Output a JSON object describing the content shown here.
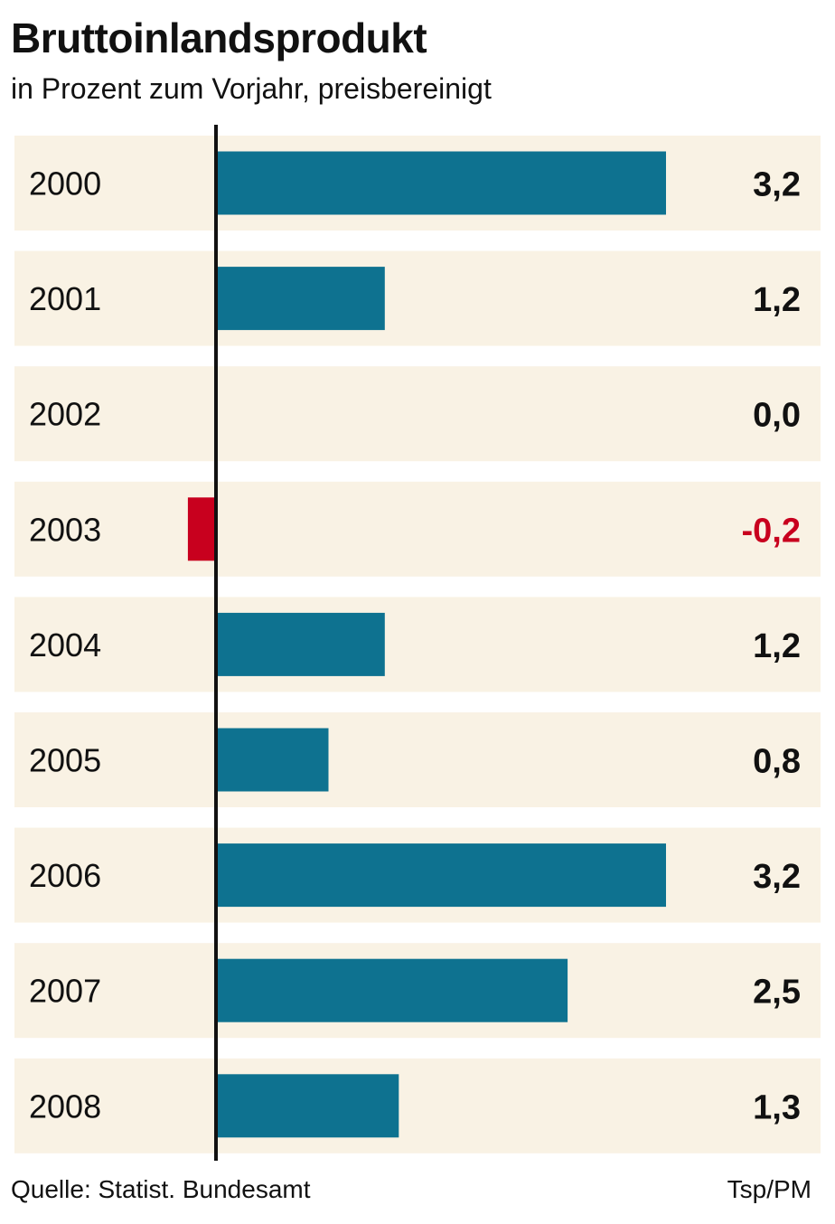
{
  "chart_data": {
    "type": "bar",
    "orientation": "horizontal",
    "title": "Bruttoinlandsprodukt",
    "subtitle": "in Prozent zum Vorjahr, preisbereinigt",
    "categories": [
      "2000",
      "2001",
      "2002",
      "2003",
      "2004",
      "2005",
      "2006",
      "2007",
      "2008"
    ],
    "values": [
      3.2,
      1.2,
      0.0,
      -0.2,
      1.2,
      0.8,
      3.2,
      2.5,
      1.3
    ],
    "value_labels": [
      "3,2",
      "1,2",
      "0,0",
      "-0,2",
      "1,2",
      "0,8",
      "3,2",
      "2,5",
      "1,3"
    ],
    "xlim": [
      -0.2,
      3.2
    ],
    "grid": false,
    "legend": "none",
    "colors": {
      "positive_bar": "#0e7290",
      "negative_bar": "#c8001e",
      "row_background": "#f9f2e4",
      "axis": "#111111",
      "positive_text": "#111111",
      "negative_text": "#c8001e"
    }
  },
  "footer": {
    "source": "Quelle: Statist. Bundesamt",
    "credit": "Tsp/PM"
  }
}
